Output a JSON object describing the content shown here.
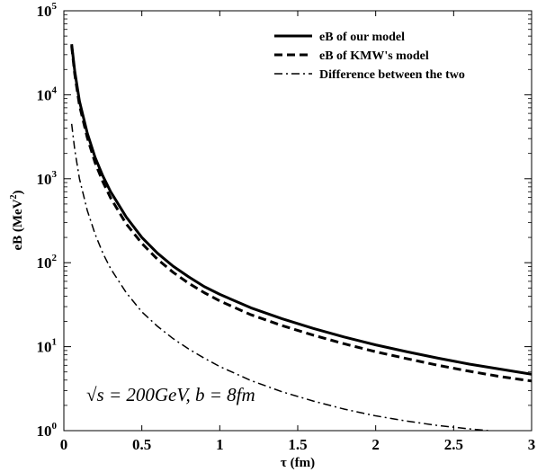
{
  "chart_data": {
    "type": "line",
    "xlabel": "τ (fm)",
    "ylabel_main": "eB (MeV",
    "ylabel_sup": "2",
    "ylabel_close": ")",
    "xlim": [
      0,
      3
    ],
    "ylim": [
      1,
      100000
    ],
    "yscale": "log",
    "grid": false,
    "legend_placement": "top-right",
    "x_ticks": [
      {
        "value": 0,
        "label": "0"
      },
      {
        "value": 0.5,
        "label": "0.5"
      },
      {
        "value": 1,
        "label": "1"
      },
      {
        "value": 1.5,
        "label": "1.5"
      },
      {
        "value": 2,
        "label": "2"
      },
      {
        "value": 2.5,
        "label": "2.5"
      },
      {
        "value": 3,
        "label": "3"
      }
    ],
    "y_ticks": [
      {
        "value": 1,
        "base": "10",
        "exp": "0"
      },
      {
        "value": 10,
        "base": "10",
        "exp": "1"
      },
      {
        "value": 100,
        "base": "10",
        "exp": "2"
      },
      {
        "value": 1000,
        "base": "10",
        "exp": "3"
      },
      {
        "value": 10000,
        "base": "10",
        "exp": "4"
      },
      {
        "value": 100000,
        "base": "10",
        "exp": "5"
      }
    ],
    "annotation": "√s = 200GeV, b = 8fm",
    "series": [
      {
        "name": "eB of our model",
        "style": "solid",
        "width": 3,
        "x": [
          0.05,
          0.07,
          0.1,
          0.15,
          0.2,
          0.25,
          0.3,
          0.4,
          0.5,
          0.6,
          0.7,
          0.8,
          0.9,
          1.0,
          1.2,
          1.4,
          1.6,
          1.8,
          2.0,
          2.2,
          2.4,
          2.6,
          2.8,
          3.0
        ],
        "y": [
          40000,
          19000,
          8400,
          3500,
          1800,
          1080,
          700,
          350,
          200,
          130,
          91,
          68,
          52,
          42,
          29,
          21.5,
          16.5,
          13,
          10.5,
          8.7,
          7.3,
          6.2,
          5.4,
          4.7
        ]
      },
      {
        "name": "eB of KMW's model",
        "style": "dashed",
        "width": 3,
        "x": [
          0.05,
          0.07,
          0.1,
          0.15,
          0.2,
          0.25,
          0.3,
          0.4,
          0.5,
          0.6,
          0.7,
          0.8,
          0.9,
          1.0,
          1.2,
          1.4,
          1.6,
          1.8,
          2.0,
          2.2,
          2.4,
          2.6,
          2.8,
          3.0
        ],
        "y": [
          38000,
          17500,
          7500,
          3100,
          1560,
          920,
          590,
          290,
          170,
          110,
          77,
          57,
          44,
          35,
          24,
          17.8,
          13.7,
          10.8,
          8.7,
          7.2,
          6.0,
          5.1,
          4.4,
          3.9
        ]
      },
      {
        "name": "Difference between the two",
        "style": "dashdot",
        "width": 1.5,
        "x": [
          0.05,
          0.07,
          0.1,
          0.15,
          0.2,
          0.25,
          0.3,
          0.4,
          0.5,
          0.6,
          0.7,
          0.8,
          0.9,
          1.0,
          1.2,
          1.4,
          1.6,
          1.8,
          2.0,
          2.2,
          2.4,
          2.6,
          2.8
        ],
        "y": [
          4500,
          2200,
          1000,
          420,
          220,
          130,
          85,
          44,
          26,
          17.5,
          12.5,
          9.4,
          7.3,
          5.8,
          3.95,
          2.9,
          2.25,
          1.8,
          1.5,
          1.3,
          1.15,
          1.05,
          0.97
        ]
      }
    ]
  }
}
